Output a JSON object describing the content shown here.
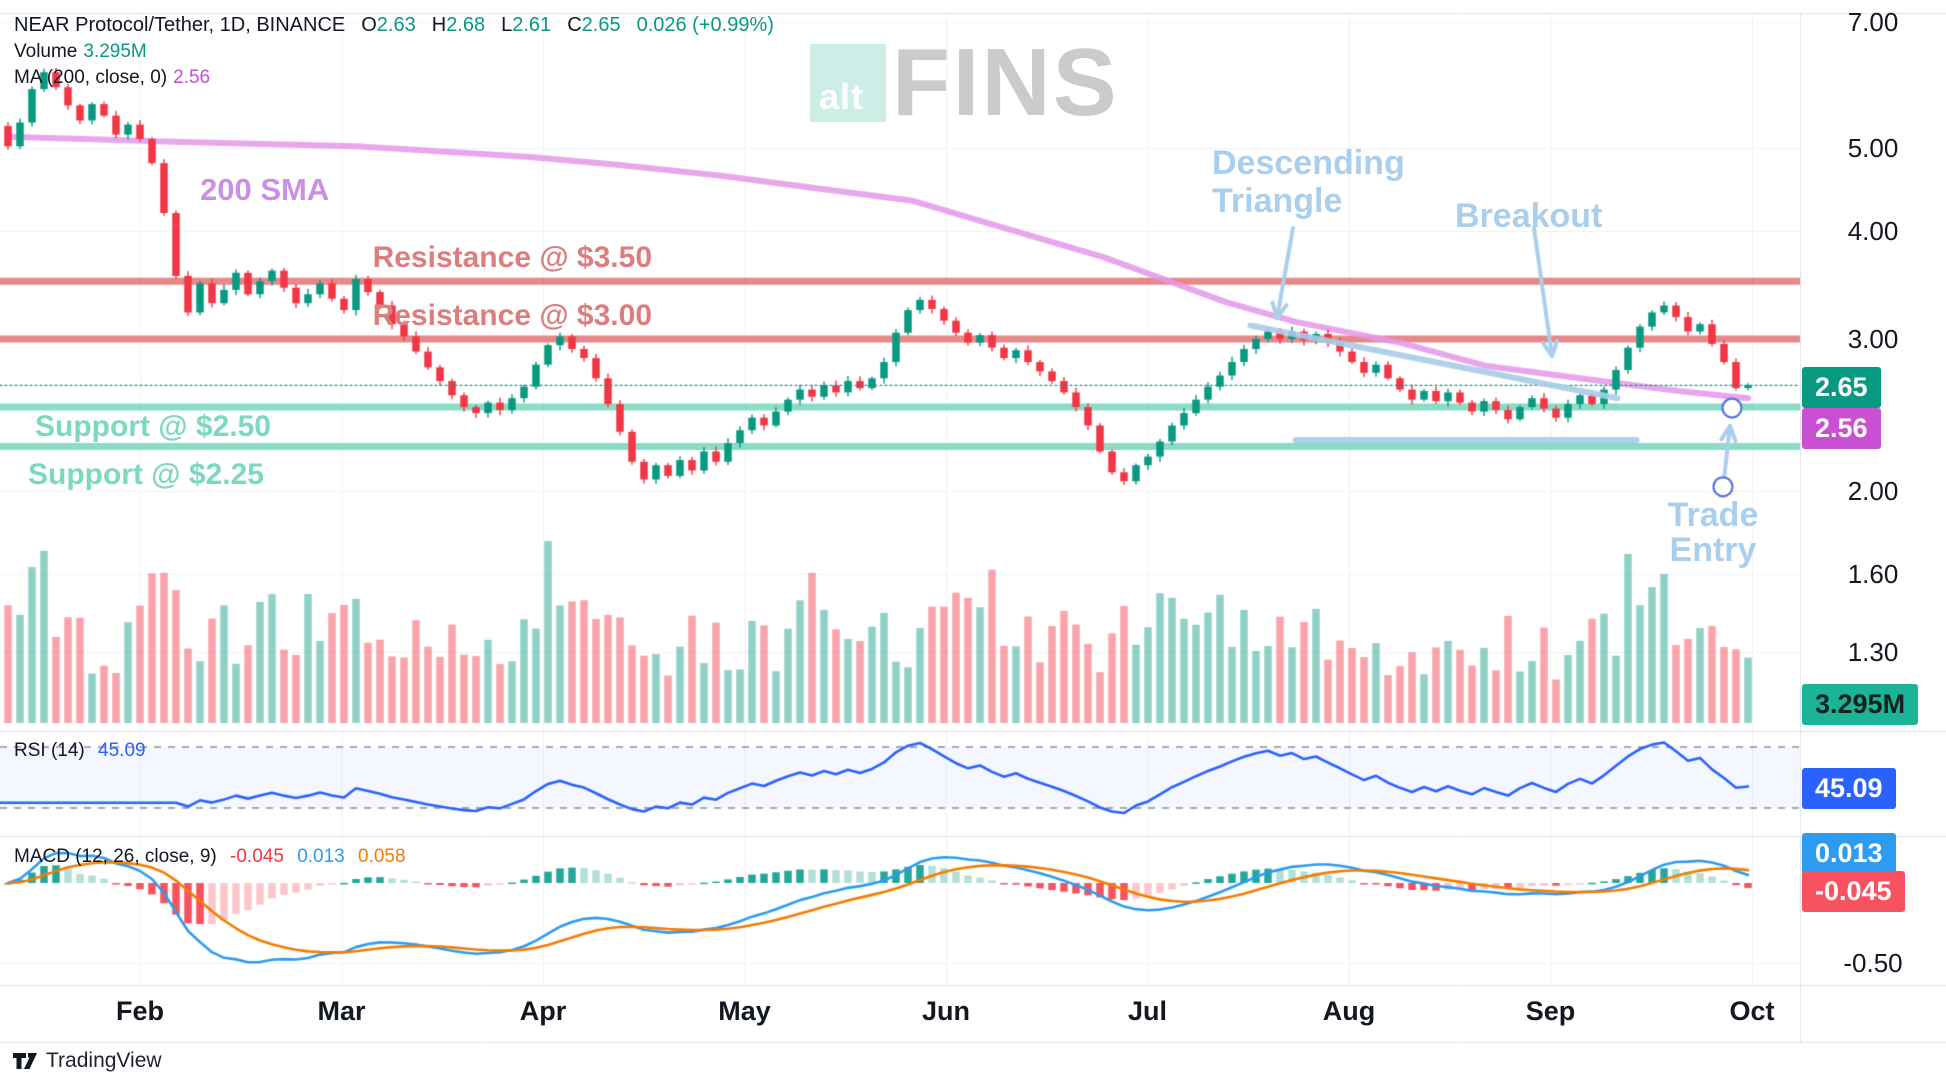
{
  "legend": {
    "title": "NEAR Protocol/Tether, 1D, BINANCE",
    "o_label": "O",
    "o": "2.63",
    "h_label": "H",
    "h": "2.68",
    "l_label": "L",
    "l": "2.61",
    "c_label": "C",
    "c": "2.65",
    "change": "0.026 (+0.99%)",
    "volume_label": "Volume",
    "volume_value": "3.295M",
    "ma_label": "MA (200, close, 0)",
    "ma_value": "2.56"
  },
  "watermark": {
    "alt": "alt",
    "fins": "FINS"
  },
  "overlay_labels": {
    "sma": "200 SMA",
    "res1": "Resistance @ $3.50",
    "res2": "Resistance @ $3.00",
    "sup1": "Support @ $2.50",
    "sup2": "Support @ $2.25",
    "dt1": "Descending",
    "dt2": "Triangle",
    "breakout": "Breakout",
    "te1": "Trade",
    "te2": "Entry"
  },
  "panes": {
    "rsi": {
      "label": "RSI (14)",
      "value": "45.09"
    },
    "macd": {
      "label": "MACD (12, 26, close, 9)",
      "hist": "-0.045",
      "macd": "0.013",
      "signal": "0.058"
    }
  },
  "axis": {
    "months": [
      "Feb",
      "Mar",
      "Apr",
      "May",
      "Jun",
      "Jul",
      "Aug",
      "Sep",
      "Oct"
    ],
    "price_ticks": [
      "7.00",
      "5.00",
      "4.00",
      "3.00",
      "2.00",
      "1.60",
      "1.30"
    ],
    "macd_tick": "-0.50",
    "badges": {
      "last_price": "2.65",
      "ma": "2.56",
      "volume": "3.295M",
      "rsi": "45.09",
      "macd": "0.013",
      "hist": "-0.045"
    }
  },
  "footer": {
    "attribution": "TradingView"
  },
  "chart_data": {
    "type": "candlestick",
    "title": "NEAR Protocol/Tether, 1D, BINANCE",
    "timeframe": "1D",
    "price_scale": "log",
    "ohlc_display": {
      "open": 2.63,
      "high": 2.68,
      "low": 2.61,
      "close": 2.65,
      "change": 0.026,
      "change_pct": "+0.99%"
    },
    "price_ticks": [
      7.0,
      5.0,
      4.0,
      3.0,
      2.0,
      1.6,
      1.3
    ],
    "macd_tick_value": -0.5,
    "x_categories_months": [
      "Feb",
      "Mar",
      "Apr",
      "May",
      "Jun",
      "Jul",
      "Aug",
      "Sep",
      "Oct"
    ],
    "levels": {
      "resistance": [
        3.5,
        3.0
      ],
      "support": [
        2.5,
        2.25
      ],
      "last_price": 2.65,
      "sma_last": 2.56,
      "volume_last": 3295000
    },
    "closes": [
      5.02,
      5.35,
      5.85,
      6.12,
      5.88,
      5.6,
      5.38,
      5.62,
      5.45,
      5.18,
      5.32,
      5.12,
      4.8,
      4.2,
      3.55,
      3.22,
      3.48,
      3.3,
      3.42,
      3.58,
      3.38,
      3.5,
      3.6,
      3.44,
      3.3,
      3.38,
      3.48,
      3.34,
      3.24,
      3.52,
      3.4,
      3.28,
      3.12,
      3.02,
      2.9,
      2.78,
      2.68,
      2.58,
      2.5,
      2.46,
      2.53,
      2.48,
      2.56,
      2.64,
      2.8,
      2.95,
      3.02,
      2.92,
      2.85,
      2.7,
      2.52,
      2.34,
      2.16,
      2.06,
      2.14,
      2.08,
      2.17,
      2.11,
      2.22,
      2.16,
      2.27,
      2.35,
      2.43,
      2.38,
      2.47,
      2.55,
      2.62,
      2.57,
      2.65,
      2.6,
      2.68,
      2.63,
      2.7,
      2.82,
      3.05,
      3.24,
      3.33,
      3.25,
      3.15,
      3.05,
      2.97,
      3.03,
      2.93,
      2.85,
      2.91,
      2.82,
      2.75,
      2.68,
      2.6,
      2.5,
      2.38,
      2.22,
      2.1,
      2.05,
      2.14,
      2.19,
      2.28,
      2.38,
      2.46,
      2.55,
      2.64,
      2.72,
      2.82,
      2.92,
      3.0,
      3.06,
      3.0,
      3.06,
      2.99,
      3.04,
      2.97,
      2.9,
      2.82,
      2.74,
      2.8,
      2.7,
      2.62,
      2.55,
      2.61,
      2.54,
      2.6,
      2.53,
      2.47,
      2.54,
      2.48,
      2.42,
      2.5,
      2.56,
      2.49,
      2.43,
      2.52,
      2.58,
      2.52,
      2.62,
      2.76,
      2.93,
      3.1,
      3.22,
      3.28,
      3.18,
      3.06,
      3.12,
      2.96,
      2.82,
      2.63,
      2.65
    ],
    "open_first": 5.3,
    "volume_profile": [
      [
        0,
        0.55
      ],
      [
        0.02,
        0.8
      ],
      [
        0.04,
        0.5
      ],
      [
        0.06,
        0.45
      ],
      [
        0.085,
        0.9
      ],
      [
        0.1,
        0.6
      ],
      [
        0.13,
        0.5
      ],
      [
        0.16,
        0.6
      ],
      [
        0.19,
        0.55
      ],
      [
        0.22,
        0.6
      ],
      [
        0.25,
        0.45
      ],
      [
        0.28,
        0.45
      ],
      [
        0.3,
        0.55
      ],
      [
        0.315,
        1.0
      ],
      [
        0.33,
        0.8
      ],
      [
        0.35,
        0.6
      ],
      [
        0.38,
        0.45
      ],
      [
        0.4,
        0.5
      ],
      [
        0.42,
        0.42
      ],
      [
        0.45,
        0.5
      ],
      [
        0.465,
        0.75
      ],
      [
        0.48,
        0.6
      ],
      [
        0.5,
        0.5
      ],
      [
        0.53,
        0.55
      ],
      [
        0.55,
        0.9
      ],
      [
        0.57,
        0.8
      ],
      [
        0.6,
        0.5
      ],
      [
        0.63,
        0.45
      ],
      [
        0.65,
        0.55
      ],
      [
        0.68,
        0.6
      ],
      [
        0.7,
        0.55
      ],
      [
        0.72,
        0.5
      ],
      [
        0.74,
        0.65
      ],
      [
        0.76,
        0.5
      ],
      [
        0.78,
        0.42
      ],
      [
        0.8,
        0.38
      ],
      [
        0.82,
        0.35
      ],
      [
        0.85,
        0.45
      ],
      [
        0.87,
        0.5
      ],
      [
        0.89,
        0.42
      ],
      [
        0.905,
        0.5
      ],
      [
        0.925,
        0.55
      ],
      [
        0.933,
        1.0
      ],
      [
        0.94,
        0.85
      ],
      [
        0.95,
        0.65
      ],
      [
        0.96,
        0.75
      ],
      [
        0.97,
        0.5
      ],
      [
        0.985,
        0.42
      ],
      [
        1,
        0.28
      ]
    ],
    "sma200_path": [
      [
        0,
        5.15
      ],
      [
        0.1,
        5.08
      ],
      [
        0.2,
        5.02
      ],
      [
        0.25,
        4.95
      ],
      [
        0.3,
        4.88
      ],
      [
        0.35,
        4.78
      ],
      [
        0.41,
        4.64
      ],
      [
        0.46,
        4.5
      ],
      [
        0.52,
        4.34
      ],
      [
        0.57,
        4.05
      ],
      [
        0.63,
        3.73
      ],
      [
        0.7,
        3.31
      ],
      [
        0.74,
        3.14
      ],
      [
        0.8,
        2.97
      ],
      [
        0.85,
        2.79
      ],
      [
        0.91,
        2.69
      ],
      [
        0.96,
        2.61
      ],
      [
        1,
        2.56
      ]
    ],
    "descending_trendline": {
      "from": [
        0.714,
        3.11
      ],
      "to": [
        0.925,
        2.56
      ]
    },
    "flat_trendline": {
      "price": 2.29,
      "from": 0.74,
      "to": 0.936
    },
    "rsi": {
      "period": 14,
      "upper_band": 70,
      "lower_band": 30,
      "last": 45.09
    },
    "macd": {
      "fast": 12,
      "slow": 26,
      "signal": 9,
      "last_hist": -0.045,
      "last_macd": 0.013,
      "last_signal": 0.058
    },
    "trade_entry_markers": {
      "entry_circle_price": 2.5,
      "target_circle_price": 2.02
    },
    "colors": {
      "up": "#089981",
      "down": "#f23645",
      "vol_up": "rgba(8,153,129,0.45)",
      "vol_down": "rgba(242,54,69,0.45)",
      "grid": "#eef1f8",
      "separator": "#e0e3eb",
      "resistance_line": "rgba(224,116,116,0.85)",
      "resistance_text": "#dd7d7d",
      "support_line": "rgba(125,216,192,0.9)",
      "support_text": "#7dd8c0",
      "sma_line": "rgba(228,152,233,0.85)",
      "sma_text": "#cb8fe3",
      "annot_blue": "#a9cfec",
      "trend_blue": "rgba(168,203,232,0.9)",
      "rsi_line": "#2962ff",
      "rsi_band_fill": "rgba(41,98,255,0.05)",
      "rsi_dash": "#787b86",
      "macd_line": "#2d9bf0",
      "signal_line": "#f57c00",
      "hist_pos_strong": "#26a69a",
      "hist_pos_pale": "#b2dfd8",
      "hist_neg_strong": "#f7525f",
      "hist_neg_pale": "#fbc7cb",
      "badge_last": "#089981",
      "badge_ma": "#c94fd3",
      "badge_volume": "#1cb497",
      "badge_rsi": "#2962ff",
      "badge_macd": "#2d9bf0",
      "badge_hist": "#f7525f",
      "axis_text": "#131722"
    }
  }
}
